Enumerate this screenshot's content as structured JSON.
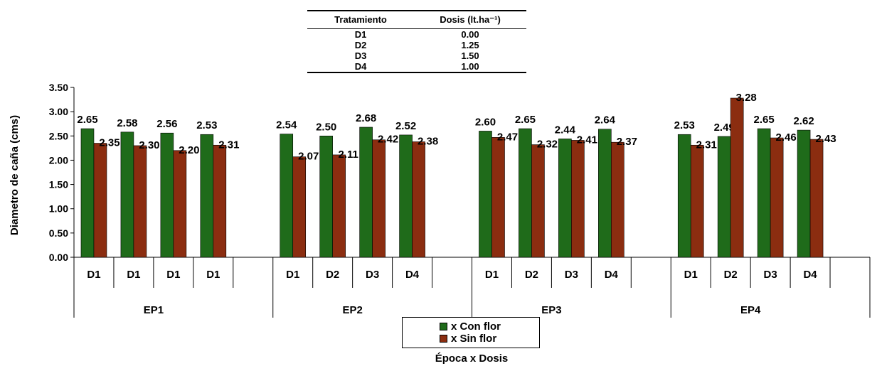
{
  "table": {
    "headers": [
      "Tratamiento",
      "Dosis (lt.ha⁻¹)"
    ],
    "rows": [
      [
        "D1",
        "0.00"
      ],
      [
        "D2",
        "1.25"
      ],
      [
        "D3",
        "1.50"
      ],
      [
        "D4",
        "1.00"
      ]
    ]
  },
  "legend": {
    "items": [
      {
        "label": "x Con flor",
        "color": "#1f6b1a"
      },
      {
        "label": "x Sin flor",
        "color": "#8b2d10"
      }
    ]
  },
  "chart_data": {
    "type": "bar",
    "ylabel": "Diametro de caña (cms)",
    "xlabel": "Época x Dosis",
    "ylim": [
      0,
      3.5
    ],
    "yticks": [
      "0.00",
      "0.50",
      "1.00",
      "1.50",
      "2.00",
      "2.50",
      "3.00",
      "3.50"
    ],
    "grid": false,
    "legend_position": "bottom-center",
    "groups": [
      {
        "label": "EP1",
        "categories": [
          "D1",
          "D1",
          "D1",
          "D1"
        ]
      },
      {
        "label": "EP2",
        "categories": [
          "D1",
          "D2",
          "D3",
          "D4"
        ]
      },
      {
        "label": "EP3",
        "categories": [
          "D1",
          "D2",
          "D3",
          "D4"
        ]
      },
      {
        "label": "EP4",
        "categories": [
          "D1",
          "D2",
          "D3",
          "D4"
        ]
      }
    ],
    "series": [
      {
        "name": "x Con flor",
        "color": "#1f6b1a",
        "values": [
          2.65,
          2.58,
          2.56,
          2.53,
          2.54,
          2.5,
          2.68,
          2.52,
          2.6,
          2.65,
          2.44,
          2.64,
          2.53,
          2.49,
          2.65,
          2.62
        ],
        "labels": [
          "2.65",
          "2.58",
          "2.56",
          "2.53",
          "2.54",
          "2.50",
          "2.68",
          "2.52",
          "2.60",
          "2.65",
          "2.44",
          "2.64",
          "2.53",
          "2.49",
          "2.65",
          "2.62"
        ]
      },
      {
        "name": "x Sin flor",
        "color": "#8b2d10",
        "values": [
          2.35,
          2.3,
          2.2,
          2.31,
          2.07,
          2.11,
          2.42,
          2.38,
          2.47,
          2.32,
          2.41,
          2.37,
          2.31,
          3.28,
          2.46,
          2.43
        ],
        "labels": [
          "2.35",
          "2.30",
          "2.20",
          "2.31",
          "2.07",
          "2.11",
          "2.42",
          "2.38",
          "2.47",
          "2.32",
          "2.41",
          "2.37",
          "2.31",
          "3.28",
          "2.46",
          "2.43"
        ]
      }
    ]
  }
}
